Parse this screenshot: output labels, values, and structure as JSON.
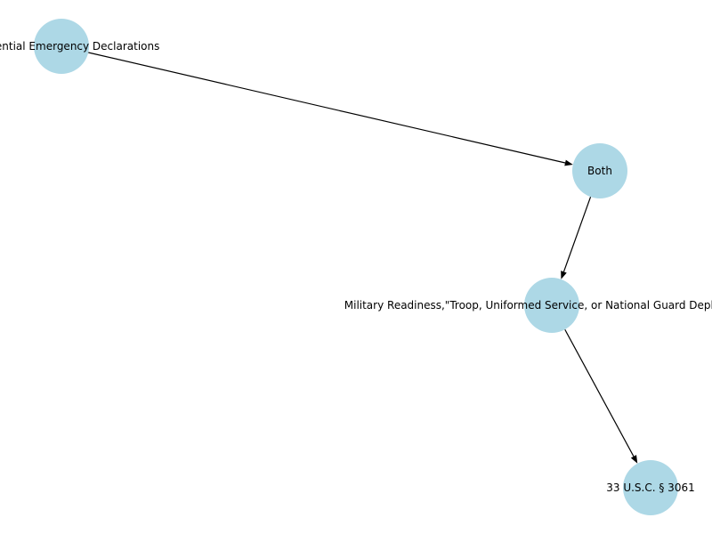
{
  "diagram": {
    "type": "directed-graph",
    "node_color": "#add8e6",
    "edge_color": "#000000",
    "nodes": [
      {
        "id": "n1",
        "label": "Presidential Emergency Declarations"
      },
      {
        "id": "n2",
        "label": "Both"
      },
      {
        "id": "n3",
        "label": "Military Readiness,\"Troop, Uniformed Service, or National Guard Deployment\""
      },
      {
        "id": "n4",
        "label": "33 U.S.C. § 3061"
      }
    ],
    "edges": [
      {
        "from": "n1",
        "to": "n2"
      },
      {
        "from": "n2",
        "to": "n3"
      },
      {
        "from": "n3",
        "to": "n4"
      }
    ]
  }
}
